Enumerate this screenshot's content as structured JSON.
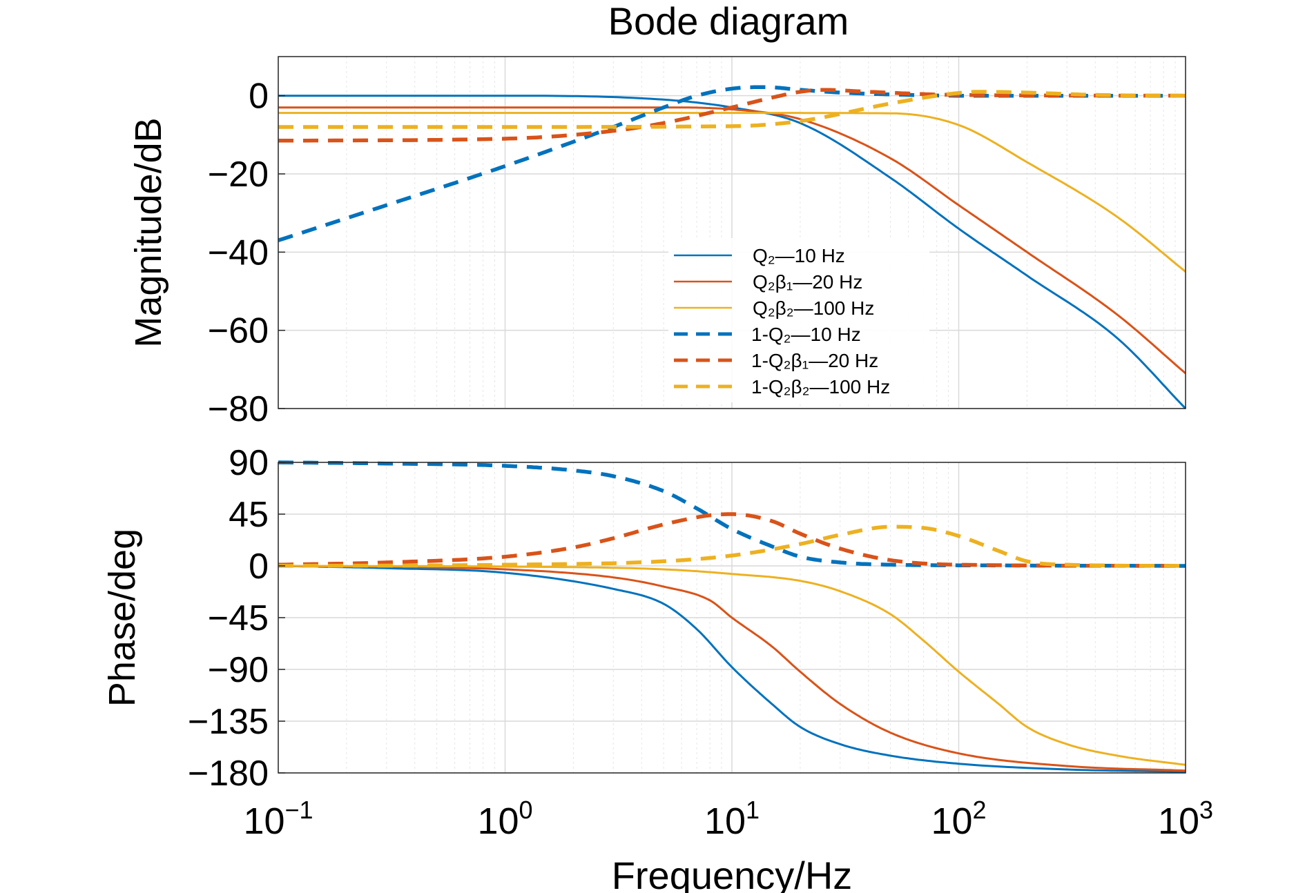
{
  "chart_data": [
    {
      "panel": "magnitude",
      "type": "line",
      "title": "Bode diagram",
      "ylabel": "Magnitude/dB",
      "xlabel": "",
      "xscale": "log",
      "xlim": [
        0.1,
        1000
      ],
      "ylim": [
        -80,
        10
      ],
      "yticks": [
        0,
        -20,
        -40,
        -60,
        -80
      ],
      "grid": true,
      "legend_position": "center-right",
      "series": [
        {
          "name": "Q₂—10 Hz",
          "color": "#0072BD",
          "dash": false,
          "x": [
            0.1,
            1,
            5,
            10,
            20,
            50,
            100,
            200,
            500,
            1000
          ],
          "y": [
            0,
            0,
            -1,
            -3,
            -7,
            -21,
            -34,
            -46,
            -62,
            -80
          ]
        },
        {
          "name": "Q₂β₁—20 Hz",
          "color": "#D95319",
          "dash": false,
          "x": [
            0.1,
            1,
            5,
            10,
            20,
            50,
            100,
            200,
            500,
            1000
          ],
          "y": [
            -3,
            -3,
            -3,
            -3.5,
            -6,
            -16,
            -28,
            -40,
            -56,
            -71
          ]
        },
        {
          "name": "Q₂β₂—100 Hz",
          "color": "#EDB120",
          "dash": false,
          "x": [
            0.1,
            1,
            10,
            50,
            100,
            200,
            500,
            1000
          ],
          "y": [
            -4.4,
            -4.4,
            -4.4,
            -4.5,
            -7.5,
            -17,
            -31,
            -45
          ]
        },
        {
          "name": "1-Q₂—10 Hz",
          "color": "#0072BD",
          "dash": true,
          "x": [
            0.1,
            0.3,
            1,
            3,
            5,
            7,
            10,
            14,
            20,
            30,
            60,
            100,
            1000
          ],
          "y": [
            -37,
            -28,
            -18,
            -8,
            -3,
            0,
            1.8,
            2.2,
            1.5,
            0.8,
            0.2,
            0,
            0
          ]
        },
        {
          "name": "1-Q₂β₁—20 Hz",
          "color": "#D95319",
          "dash": true,
          "x": [
            0.1,
            1,
            3,
            5,
            10,
            15,
            20,
            25,
            40,
            80,
            150,
            1000
          ],
          "y": [
            -11.5,
            -11,
            -9,
            -7,
            -3,
            -0.5,
            1,
            1.5,
            1,
            0.3,
            0.1,
            0
          ]
        },
        {
          "name": "1-Q₂β₂—100 Hz",
          "color": "#EDB120",
          "dash": true,
          "x": [
            0.1,
            1,
            10,
            20,
            50,
            80,
            100,
            120,
            200,
            400,
            1000
          ],
          "y": [
            -8,
            -8,
            -7.8,
            -6.5,
            -2,
            0,
            0.7,
            1,
            0.8,
            0.2,
            0
          ]
        }
      ]
    },
    {
      "panel": "phase",
      "type": "line",
      "ylabel": "Phase/deg",
      "xlabel": "Frequency/Hz",
      "xscale": "log",
      "xlim": [
        0.1,
        1000
      ],
      "ylim": [
        -180,
        90
      ],
      "yticks": [
        90,
        45,
        0,
        -45,
        -90,
        -135,
        -180
      ],
      "xticks": [
        "10⁻¹",
        "10⁰",
        "10¹",
        "10²",
        "10³"
      ],
      "grid": true,
      "series": [
        {
          "name": "Q₂—10 Hz",
          "color": "#0072BD",
          "dash": false,
          "x": [
            0.1,
            0.3,
            1,
            3,
            5,
            7,
            10,
            15,
            20,
            30,
            50,
            100,
            300,
            1000
          ],
          "y": [
            0,
            -2,
            -6,
            -20,
            -33,
            -55,
            -88,
            -120,
            -140,
            -155,
            -165,
            -172,
            -177,
            -179
          ]
        },
        {
          "name": "Q₂β₁—20 Hz",
          "color": "#D95319",
          "dash": false,
          "x": [
            0.1,
            1,
            3,
            5,
            8,
            10,
            15,
            20,
            30,
            50,
            100,
            300,
            1000
          ],
          "y": [
            0,
            -3,
            -10,
            -18,
            -30,
            -45,
            -70,
            -92,
            -120,
            -145,
            -163,
            -174,
            -178
          ]
        },
        {
          "name": "Q₂β₂—100 Hz",
          "color": "#EDB120",
          "dash": false,
          "x": [
            0.1,
            1,
            5,
            10,
            20,
            30,
            50,
            70,
            100,
            150,
            200,
            300,
            500,
            1000
          ],
          "y": [
            0,
            -0.6,
            -3,
            -7,
            -13,
            -22,
            -42,
            -65,
            -92,
            -120,
            -140,
            -155,
            -165,
            -173
          ]
        },
        {
          "name": "1-Q₂—10 Hz",
          "color": "#0072BD",
          "dash": true,
          "x": [
            0.1,
            0.3,
            1,
            2,
            3,
            5,
            7,
            10,
            15,
            20,
            30,
            50,
            100,
            1000
          ],
          "y": [
            90,
            89,
            87,
            83,
            78,
            65,
            50,
            32,
            17,
            8,
            3,
            1,
            0.5,
            0
          ]
        },
        {
          "name": "1-Q₂β₁—20 Hz",
          "color": "#D95319",
          "dash": true,
          "x": [
            0.1,
            0.3,
            1,
            2,
            3,
            5,
            8,
            10,
            15,
            20,
            30,
            50,
            100,
            1000
          ],
          "y": [
            1,
            3,
            8,
            16,
            24,
            36,
            44,
            45,
            39,
            28,
            15,
            5,
            1,
            0
          ]
        },
        {
          "name": "1-Q₂β₂—100 Hz",
          "color": "#EDB120",
          "dash": true,
          "x": [
            0.1,
            1,
            5,
            10,
            20,
            30,
            50,
            70,
            100,
            150,
            200,
            300,
            1000
          ],
          "y": [
            0,
            1,
            4,
            9,
            19,
            27,
            34,
            33,
            26,
            13,
            4,
            1,
            0
          ]
        }
      ]
    }
  ]
}
